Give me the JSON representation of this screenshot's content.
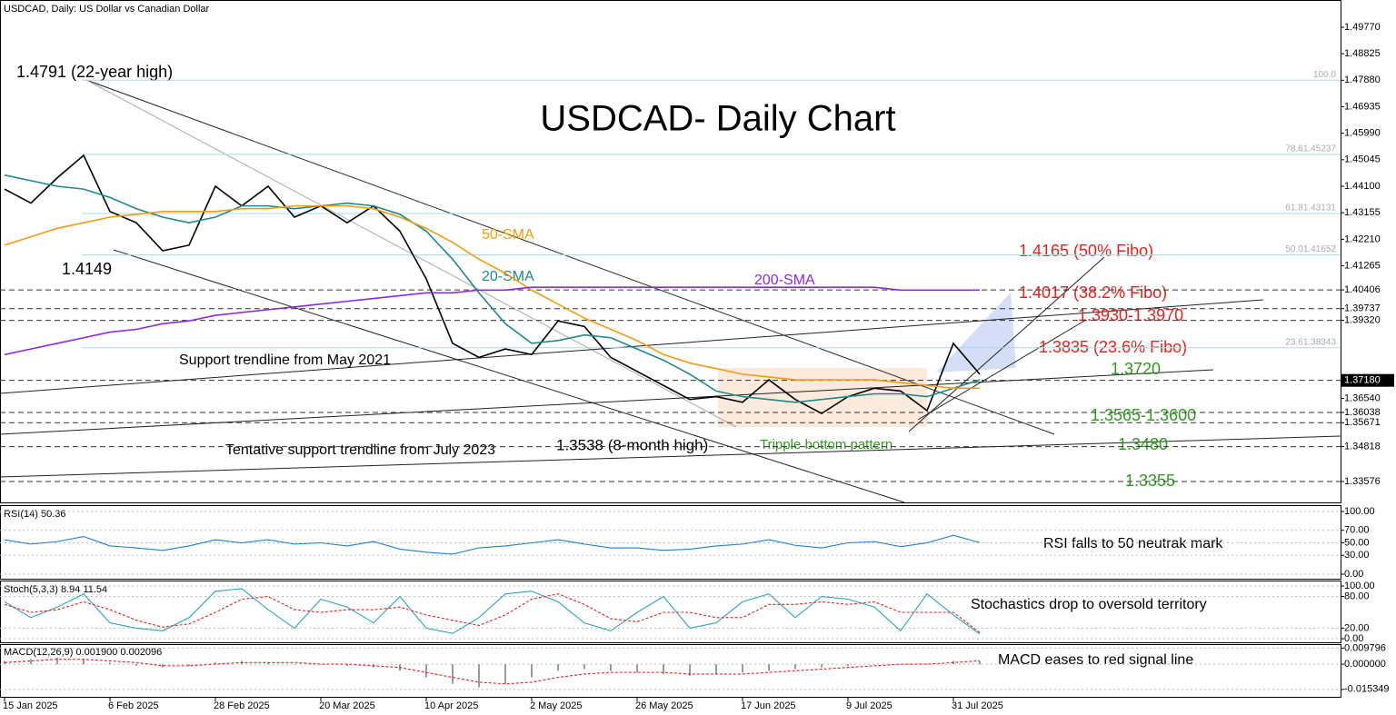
{
  "header": "USDCAD, Daily:  US Dollar vs Canadian Dollar",
  "chart_data": [
    {
      "type": "line",
      "title": "USDCAD- Daily Chart",
      "categories": [
        "15 Jan 2025",
        null,
        null,
        null,
        "6 Feb 2025",
        null,
        null,
        null,
        "28 Feb 2025",
        null,
        null,
        null,
        "20 Mar 2025",
        null,
        null,
        null,
        "10 Apr 2025",
        null,
        null,
        null,
        "2 May 2025",
        null,
        null,
        null,
        "26 May 2025",
        null,
        null,
        null,
        "17 Jun 2025",
        null,
        null,
        null,
        "9 Jul 2025",
        null,
        null,
        null,
        "31 Jul 2025",
        null
      ],
      "series": [
        {
          "color": "#000000",
          "values": [
            1.44,
            1.435,
            1.444,
            1.452,
            1.432,
            1.428,
            1.418,
            1.42,
            1.441,
            1.434,
            1.441,
            1.43,
            1.434,
            1.428,
            1.434,
            1.425,
            1.408,
            1.385,
            1.38,
            1.383,
            1.381,
            1.393,
            1.391,
            1.38,
            1.375,
            1.37,
            1.365,
            1.366,
            1.364,
            1.372,
            1.365,
            1.36,
            1.366,
            1.369,
            1.368,
            1.361,
            1.385,
            1.374
          ]
        },
        {
          "name": "20-SMA",
          "color": "#1f8a8a",
          "values": [
            1.445,
            1.443,
            1.441,
            1.44,
            1.437,
            1.433,
            1.43,
            1.428,
            1.43,
            1.434,
            1.434,
            1.433,
            1.434,
            1.435,
            1.434,
            1.431,
            1.425,
            1.415,
            1.403,
            1.392,
            1.385,
            1.386,
            1.388,
            1.387,
            1.383,
            1.379,
            1.374,
            1.368,
            1.366,
            1.365,
            1.364,
            1.365,
            1.366,
            1.367,
            1.367,
            1.366,
            1.369,
            1.372
          ]
        },
        {
          "name": "50-SMA",
          "color": "#f39c12",
          "values": [
            1.42,
            1.423,
            1.426,
            1.428,
            1.43,
            1.431,
            1.432,
            1.432,
            1.432,
            1.433,
            1.433,
            1.434,
            1.434,
            1.434,
            1.433,
            1.43,
            1.426,
            1.421,
            1.415,
            1.41,
            1.404,
            1.399,
            1.394,
            1.39,
            1.386,
            1.381,
            1.378,
            1.376,
            1.374,
            1.373,
            1.372,
            1.372,
            1.372,
            1.372,
            1.371,
            1.37,
            1.369,
            1.369
          ]
        },
        {
          "name": "200-SMA",
          "color": "#8a2be2",
          "values": [
            1.381,
            1.383,
            1.385,
            1.387,
            1.389,
            1.39,
            1.392,
            1.393,
            1.395,
            1.396,
            1.397,
            1.398,
            1.399,
            1.4,
            1.401,
            1.402,
            1.403,
            1.403,
            1.404,
            1.404,
            1.405,
            1.405,
            1.405,
            1.405,
            1.405,
            1.405,
            1.405,
            1.405,
            1.405,
            1.405,
            1.405,
            1.405,
            1.405,
            1.405,
            1.404,
            1.404,
            1.404,
            1.404
          ]
        }
      ],
      "ylim": [
        1.3283,
        1.5074
      ],
      "yticks": [
        {
          "value": 1.4977,
          "label": "1.49770"
        },
        {
          "value": 1.48825,
          "label": "1.48825"
        },
        {
          "value": 1.4788,
          "label": "1.47880"
        },
        {
          "value": 1.46935,
          "label": "1.46935"
        },
        {
          "value": 1.4599,
          "label": "1.45990"
        },
        {
          "value": 1.45045,
          "label": "1.45045"
        },
        {
          "value": 1.441,
          "label": "1.44100"
        },
        {
          "value": 1.43155,
          "label": "1.43155"
        },
        {
          "value": 1.4221,
          "label": "1.42210"
        },
        {
          "value": 1.41265,
          "label": "1.41265"
        },
        {
          "value": 1.3654,
          "label": "1.36540"
        }
      ],
      "level_ticks": [
        {
          "value": 1.40406,
          "label": "1.40406"
        },
        {
          "value": 1.39737,
          "label": "1.39737"
        },
        {
          "value": 1.3932,
          "label": "1.39320"
        },
        {
          "value": 1.3718,
          "label": "1.37180"
        },
        {
          "value": 1.36038,
          "label": "1.36038"
        },
        {
          "value": 1.35671,
          "label": "1.35671"
        },
        {
          "value": 1.34818,
          "label": "1.34818"
        },
        {
          "value": 1.33576,
          "label": "1.33576"
        }
      ],
      "fibo": [
        {
          "label": "100.0",
          "value": 1.4788
        },
        {
          "label": "78.61.45237",
          "value": 1.45237
        },
        {
          "label": "61.81.43131",
          "value": 1.43131
        },
        {
          "label": "50.01.41652",
          "value": 1.41652
        },
        {
          "label": "23.61.38343",
          "value": 1.38343
        }
      ],
      "annotations": [
        "1.4791 (22-year high)",
        "1.4149",
        "Support trendline from May 2021",
        "Tentative support trendline from July 2023",
        "1.3538 (8-month high)",
        "Tripple bottom pattern",
        "1.4165 (50% Fibo)",
        "1.4017 (38.2% Fibo)",
        "1.3930-1.3970",
        "1.3835 (23.6% Fibo)",
        "1.3720",
        "1.3565-1.3600",
        "1.3480",
        "1.3355"
      ]
    },
    {
      "type": "line",
      "title": "RSI(14) 50.36",
      "note": "RSI falls to 50 neutrak mark",
      "series": [
        {
          "color": "#1e7fd8",
          "values": [
            55,
            48,
            52,
            60,
            45,
            42,
            38,
            45,
            55,
            50,
            55,
            48,
            50,
            45,
            52,
            40,
            35,
            32,
            42,
            45,
            50,
            55,
            48,
            42,
            42,
            38,
            40,
            45,
            48,
            55,
            46,
            42,
            50,
            52,
            44,
            50,
            62,
            50.36
          ]
        }
      ],
      "ylim": [
        0,
        100
      ],
      "yticks": [
        {
          "value": 100,
          "label": "100.00"
        },
        {
          "value": 70,
          "label": "70.00"
        },
        {
          "value": 50,
          "label": "50.00"
        },
        {
          "value": 30,
          "label": "30.00"
        },
        {
          "value": 0,
          "label": "0.00"
        }
      ]
    },
    {
      "type": "line",
      "title": "Stoch(5,3,3) 8.94 11.54",
      "note": "Stochastics drop to oversold territory",
      "series": [
        {
          "color": "#2aa7b8",
          "values": [
            70,
            40,
            60,
            85,
            30,
            20,
            15,
            40,
            90,
            95,
            55,
            20,
            75,
            60,
            30,
            80,
            20,
            10,
            40,
            85,
            90,
            70,
            30,
            15,
            50,
            80,
            20,
            30,
            70,
            85,
            40,
            80,
            75,
            60,
            15,
            85,
            45,
            8.94
          ]
        },
        {
          "color": "#e8201c",
          "dash": true,
          "values": [
            65,
            50,
            55,
            70,
            55,
            35,
            22,
            28,
            50,
            75,
            80,
            55,
            50,
            55,
            55,
            60,
            45,
            35,
            25,
            45,
            75,
            85,
            65,
            38,
            32,
            50,
            50,
            40,
            40,
            65,
            65,
            70,
            65,
            70,
            50,
            50,
            50,
            11.54
          ]
        }
      ],
      "ylim": [
        0,
        100
      ],
      "yticks": [
        {
          "value": 100,
          "label": "100.00"
        },
        {
          "value": 80,
          "label": "80.00"
        },
        {
          "value": 20,
          "label": "20.00"
        },
        {
          "value": 0,
          "label": "0.00"
        }
      ]
    },
    {
      "type": "bar",
      "title": "MACD(12,26,9) 0.001900 0.002096",
      "note": "MACD eases to red signal line",
      "color": "#9a9a9a",
      "values": [
        0.002,
        0.003,
        0.004,
        0.003,
        0.001,
        -0.001,
        -0.002,
        -0.001,
        0.001,
        0.002,
        0.001,
        0.0,
        0.0,
        -0.001,
        -0.002,
        -0.004,
        -0.008,
        -0.012,
        -0.014,
        -0.012,
        -0.008,
        -0.004,
        -0.003,
        -0.004,
        -0.005,
        -0.006,
        -0.007,
        -0.006,
        -0.005,
        -0.004,
        -0.003,
        -0.002,
        -0.001,
        0.0,
        0.0,
        0.0,
        0.002,
        0.0019
      ],
      "series": [
        {
          "color": "#e8201c",
          "dash": true,
          "values": [
            0.001,
            0.002,
            0.003,
            0.003,
            0.002,
            0.001,
            -0.001,
            -0.001,
            0.0,
            0.001,
            0.001,
            0.001,
            0.0,
            0.0,
            -0.001,
            -0.002,
            -0.005,
            -0.008,
            -0.011,
            -0.012,
            -0.011,
            -0.008,
            -0.006,
            -0.005,
            -0.005,
            -0.005,
            -0.006,
            -0.006,
            -0.006,
            -0.005,
            -0.004,
            -0.003,
            -0.002,
            -0.001,
            0.0,
            0.0,
            0.001,
            0.002096
          ]
        }
      ],
      "ylim": [
        -0.016,
        0.01
      ],
      "yticks": [
        {
          "value": 0.009796,
          "label": "0.009796"
        },
        {
          "value": 0,
          "label": "0.000000"
        },
        {
          "value": -0.015349,
          "label": "-0.015349"
        }
      ]
    }
  ]
}
